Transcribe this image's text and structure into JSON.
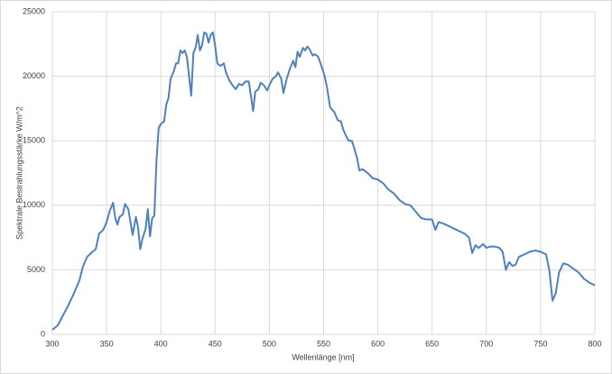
{
  "chart_data": {
    "type": "line",
    "x_label": "Wellenlänge [nm]",
    "y_label": "Spektrale Bestrahlungsstärke W/m^2",
    "color": "#4f81bd",
    "grid": true,
    "xlim": [
      300,
      800
    ],
    "xticks": [
      300,
      350,
      400,
      450,
      500,
      550,
      600,
      650,
      700,
      750,
      800
    ],
    "ylim": [
      0,
      25000
    ],
    "yticks": [
      0,
      5000,
      10000,
      15000,
      20000,
      25000
    ],
    "x": [
      300,
      305,
      310,
      315,
      320,
      325,
      328,
      332,
      337,
      340,
      343,
      347,
      350,
      353,
      356,
      358,
      360,
      362,
      365,
      367,
      370,
      372,
      374,
      377,
      379,
      381,
      383,
      386,
      388,
      390,
      392,
      394,
      396,
      398,
      400,
      403,
      405,
      407,
      409,
      412,
      414,
      416,
      418,
      420,
      422,
      424,
      426,
      428,
      430,
      432,
      434,
      436,
      438,
      440,
      442,
      444,
      446,
      448,
      450,
      452,
      455,
      458,
      460,
      463,
      466,
      469,
      472,
      475,
      478,
      481,
      483,
      485,
      487,
      490,
      492,
      495,
      498,
      500,
      503,
      506,
      508,
      511,
      513,
      516,
      519,
      522,
      524,
      526,
      528,
      531,
      533,
      535,
      537,
      540,
      542,
      545,
      548,
      551,
      553,
      556,
      560,
      563,
      566,
      568,
      570,
      573,
      576,
      578,
      581,
      583,
      586,
      589,
      592,
      595,
      600,
      605,
      610,
      615,
      620,
      625,
      630,
      635,
      640,
      645,
      650,
      653,
      656,
      660,
      665,
      670,
      675,
      680,
      684,
      687,
      690,
      693,
      697,
      700,
      703,
      708,
      712,
      715,
      718,
      721,
      724,
      727,
      730,
      735,
      740,
      745,
      750,
      755,
      758,
      761,
      764,
      767,
      771,
      775,
      780,
      785,
      790,
      795,
      800
    ],
    "values": [
      350,
      700,
      1500,
      2300,
      3200,
      4200,
      5200,
      6000,
      6400,
      6600,
      7800,
      8100,
      8700,
      9600,
      10200,
      9000,
      8500,
      9100,
      9300,
      10100,
      9700,
      8700,
      7700,
      9100,
      8300,
      6600,
      7400,
      8200,
      9700,
      7600,
      9000,
      9200,
      13500,
      16000,
      16300,
      16500,
      17800,
      18300,
      19800,
      20400,
      21000,
      21000,
      22000,
      21800,
      22000,
      21500,
      20000,
      18500,
      21800,
      22200,
      23200,
      22000,
      22400,
      23400,
      23300,
      22600,
      23200,
      23400,
      22400,
      21000,
      20800,
      21000,
      20300,
      19700,
      19300,
      19000,
      19400,
      19300,
      19600,
      19600,
      18500,
      17300,
      18800,
      19000,
      19500,
      19300,
      18900,
      19300,
      19800,
      20000,
      20300,
      19800,
      18700,
      19800,
      20600,
      21200,
      20700,
      21900,
      21500,
      22200,
      22000,
      22300,
      22100,
      21600,
      21700,
      21500,
      20800,
      20000,
      19200,
      17600,
      17200,
      16600,
      16500,
      15900,
      15500,
      15000,
      15000,
      14500,
      13600,
      12700,
      12800,
      12600,
      12400,
      12100,
      12000,
      11700,
      11200,
      10900,
      10400,
      10100,
      10000,
      9500,
      9000,
      8900,
      8900,
      8100,
      8700,
      8600,
      8400,
      8200,
      8000,
      7800,
      7500,
      6300,
      6900,
      6700,
      7000,
      6700,
      6800,
      6800,
      6700,
      6400,
      5000,
      5600,
      5300,
      5400,
      6000,
      6200,
      6400,
      6500,
      6400,
      6200,
      5000,
      2600,
      3200,
      4800,
      5500,
      5400,
      5100,
      4800,
      4300,
      4000,
      3800
    ]
  }
}
